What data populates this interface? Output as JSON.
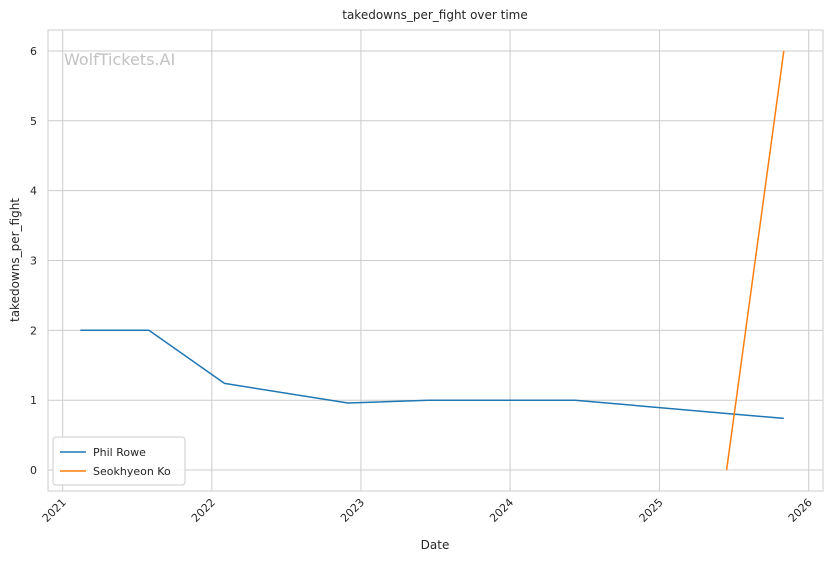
{
  "chart_data": {
    "type": "line",
    "title": "takedowns_per_fight over time",
    "xlabel": "Date",
    "ylabel": "takedowns_per_fight",
    "watermark": "WolfTickets.AI",
    "x_ticks": [
      "2021",
      "2022",
      "2023",
      "2024",
      "2025",
      "2026"
    ],
    "y_ticks": [
      "0",
      "1",
      "2",
      "3",
      "4",
      "5",
      "6"
    ],
    "xlim": [
      "2020-11-26",
      "2026-02-05"
    ],
    "ylim": [
      -0.3,
      6.3
    ],
    "grid": true,
    "legend_position": "lower-left",
    "series": [
      {
        "name": "Phil Rowe",
        "color": "#1f77b4",
        "points": [
          {
            "x": "2021-02-13",
            "y": 2.0
          },
          {
            "x": "2021-07-31",
            "y": 2.0
          },
          {
            "x": "2022-02-01",
            "y": 1.24
          },
          {
            "x": "2022-11-30",
            "y": 0.96
          },
          {
            "x": "2023-06-15",
            "y": 1.0
          },
          {
            "x": "2024-06-08",
            "y": 1.0
          },
          {
            "x": "2025-06-14",
            "y": 0.81
          },
          {
            "x": "2025-11-01",
            "y": 0.74
          }
        ]
      },
      {
        "name": "Seokhyeon Ko",
        "color": "#ff7f0e",
        "points": [
          {
            "x": "2025-06-14",
            "y": 0.0
          },
          {
            "x": "2025-11-01",
            "y": 6.0
          }
        ]
      }
    ]
  }
}
